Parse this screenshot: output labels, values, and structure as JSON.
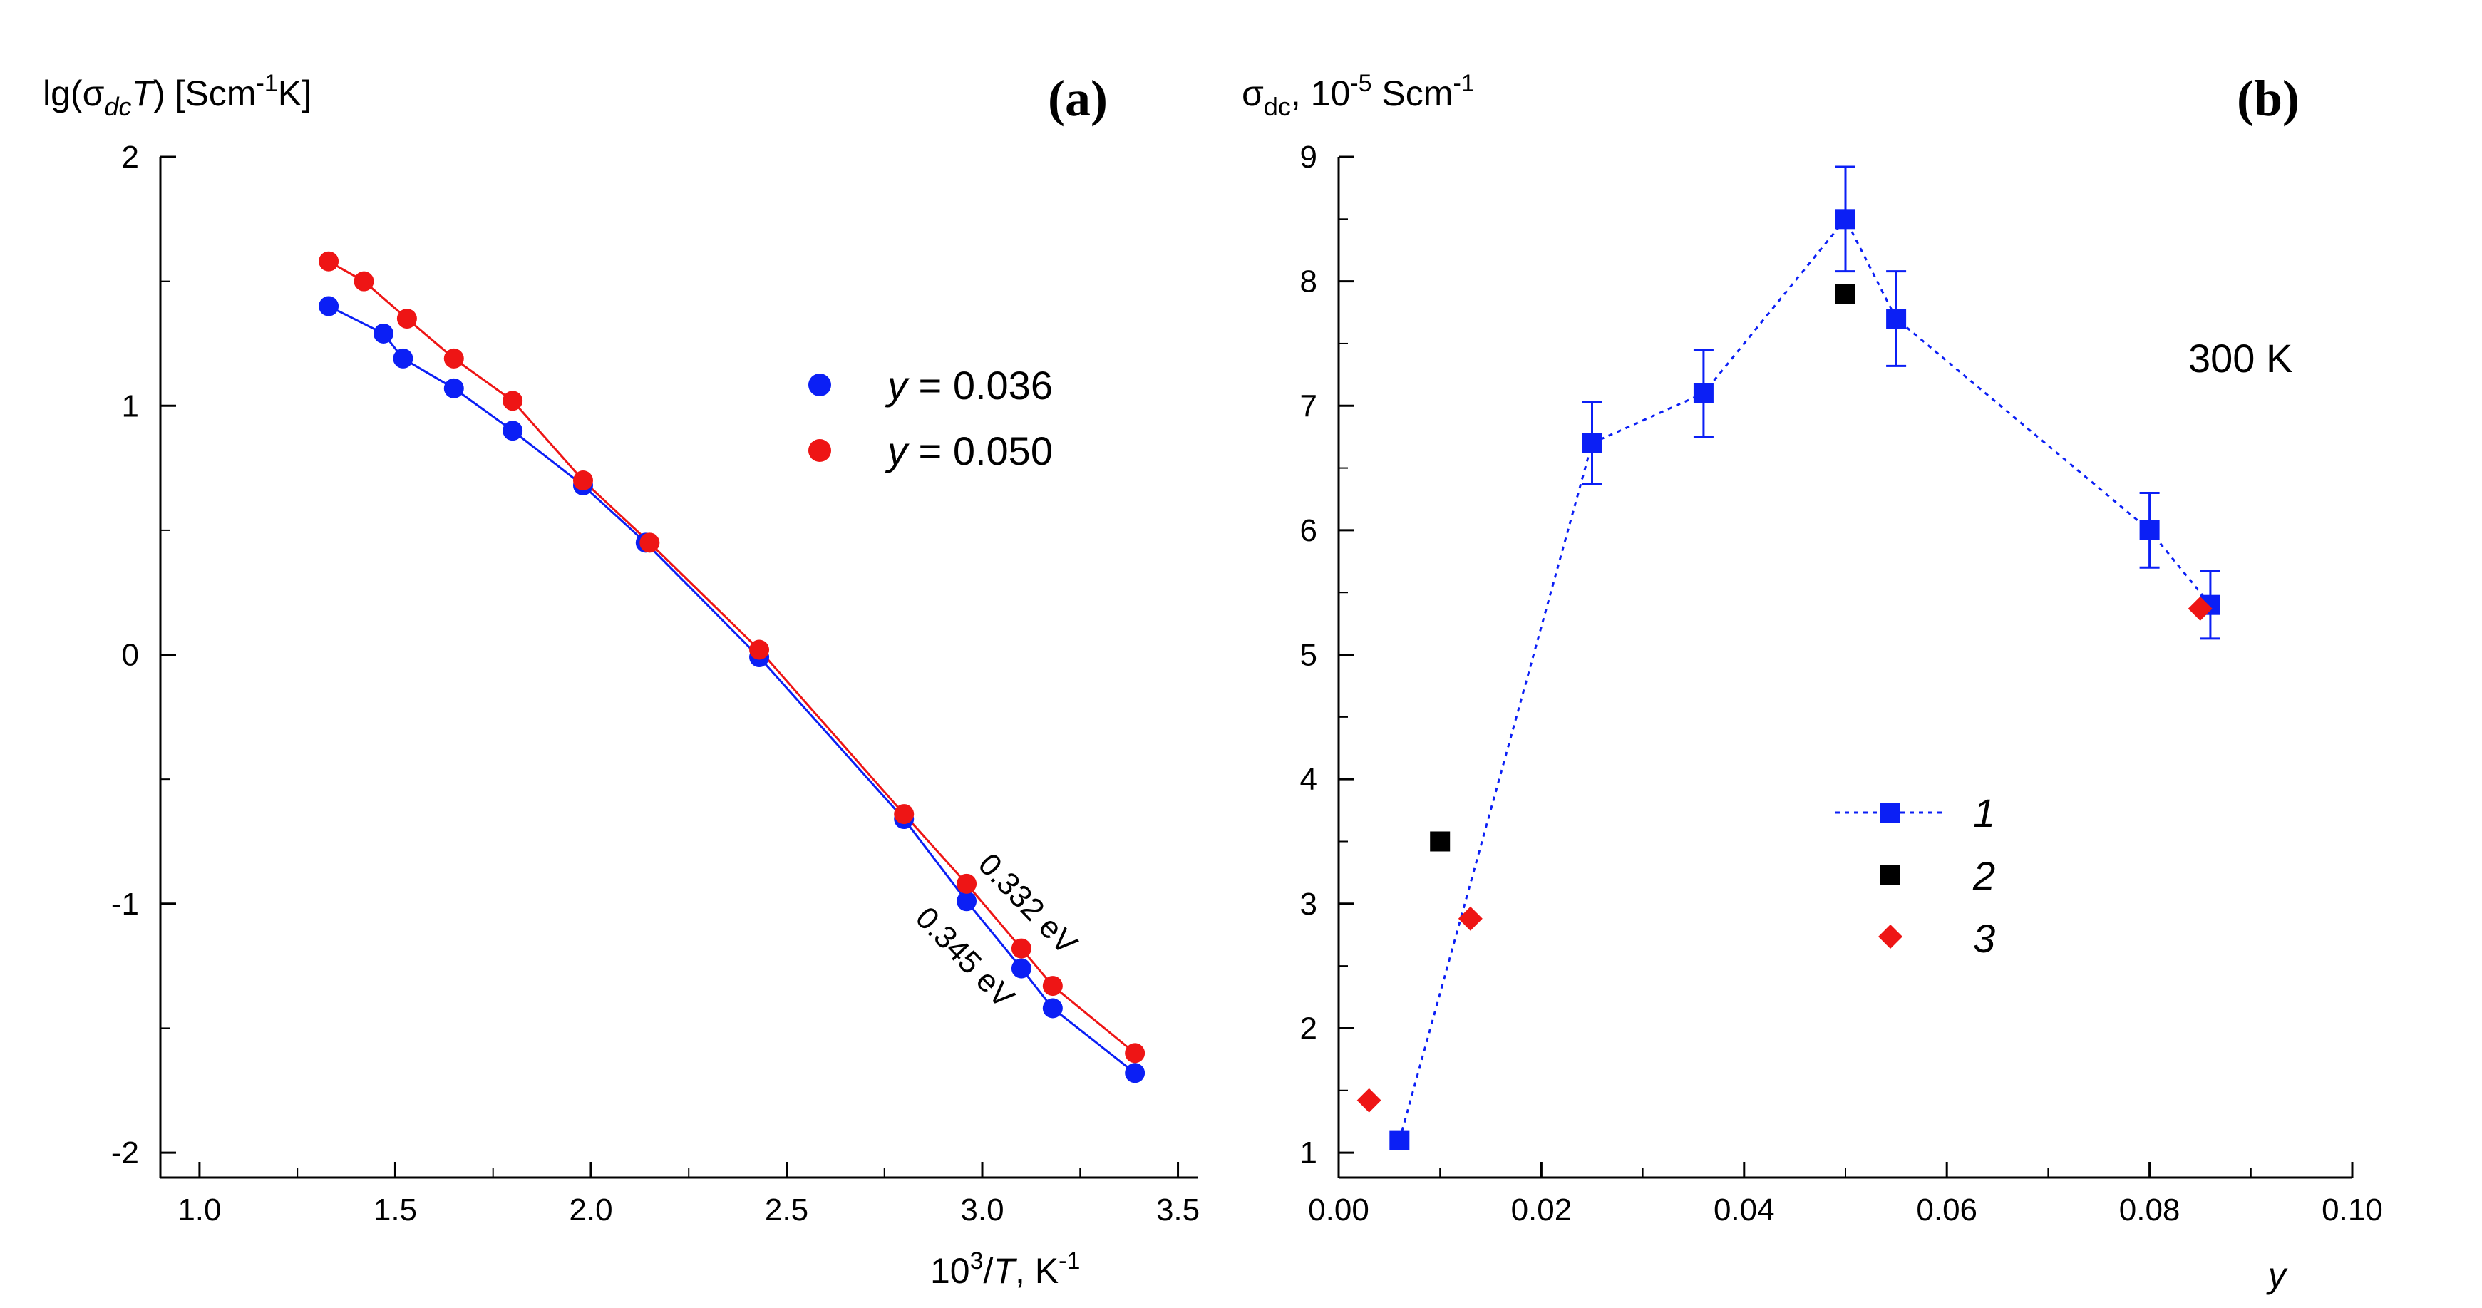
{
  "chart_data": [
    {
      "type": "scatter",
      "panel_title": "(a)",
      "ylabel": "lg(σdcT) [Scm-1K]",
      "xlabel": "10³/T, K⁻¹",
      "xlim": [
        0.9,
        3.55
      ],
      "ylim": [
        -2.1,
        2.0
      ],
      "xticks": [
        "1.0",
        "1.5",
        "2.0",
        "2.5",
        "3.0",
        "3.5"
      ],
      "yticks": [
        "-2",
        "-1",
        "0",
        "1",
        "2"
      ],
      "grid": false,
      "legend_position": "top-right",
      "series": [
        {
          "name": "y = 0.036",
          "legend_prefix": "y",
          "legend_suffix": " = 0.036",
          "color": "#0b1ff5",
          "x": [
            1.33,
            1.47,
            1.52,
            1.65,
            1.8,
            1.98,
            2.14,
            2.43,
            2.8,
            2.96,
            3.1,
            3.18,
            3.39
          ],
          "y": [
            1.4,
            1.29,
            1.19,
            1.07,
            0.9,
            0.68,
            0.45,
            -0.01,
            -0.66,
            -0.99,
            -1.26,
            -1.42,
            -1.68
          ],
          "fit_label": "0.345 eV"
        },
        {
          "name": "y = 0.050",
          "legend_prefix": "y",
          "legend_suffix": " = 0.050",
          "color": "#ee1515",
          "x": [
            1.33,
            1.42,
            1.53,
            1.65,
            1.8,
            1.98,
            2.15,
            2.43,
            2.8,
            2.96,
            3.1,
            3.18,
            3.39
          ],
          "y": [
            1.58,
            1.5,
            1.35,
            1.19,
            1.02,
            0.7,
            0.45,
            0.02,
            -0.64,
            -0.92,
            -1.18,
            -1.33,
            -1.6
          ],
          "fit_label": "0.332 eV"
        }
      ]
    },
    {
      "type": "scatter",
      "panel_title": "(b)",
      "ylabel": "σdc, 10-5 Scm-1",
      "xlabel": "y",
      "xlim": [
        0.0,
        0.1
      ],
      "ylim": [
        0.8,
        9.0
      ],
      "xticks": [
        "0.00",
        "0.02",
        "0.04",
        "0.06",
        "0.08",
        "0.10"
      ],
      "yticks": [
        "1",
        "2",
        "3",
        "4",
        "5",
        "6",
        "7",
        "8",
        "9"
      ],
      "grid": false,
      "condition": "300 K",
      "legend_position": "bottom-center",
      "series": [
        {
          "name": "1",
          "marker": "square",
          "line": "dotted",
          "color": "#0b1ff5",
          "x": [
            0.006,
            0.025,
            0.036,
            0.05,
            0.055,
            0.08,
            0.086
          ],
          "y": [
            1.1,
            6.7,
            7.1,
            8.5,
            7.7,
            6.0,
            5.4
          ],
          "yerr": [
            0.0,
            0.33,
            0.35,
            0.42,
            0.38,
            0.3,
            0.27
          ]
        },
        {
          "name": "2",
          "marker": "square",
          "color": "#000000",
          "x": [
            0.01,
            0.05
          ],
          "y": [
            3.5,
            7.9
          ]
        },
        {
          "name": "3",
          "marker": "diamond",
          "color": "#ee1515",
          "x": [
            0.003,
            0.013,
            0.085
          ],
          "y": [
            1.42,
            2.88,
            5.37
          ]
        }
      ]
    }
  ]
}
